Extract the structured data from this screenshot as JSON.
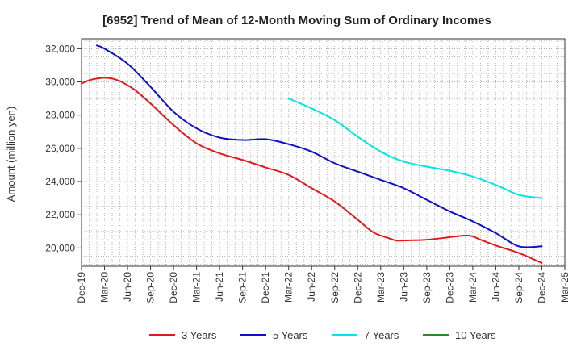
{
  "chart_data": {
    "type": "line",
    "title": "[6952]  Trend of Mean of 12-Month Moving Sum of Ordinary Incomes",
    "xlabel": "",
    "ylabel": "Amount (million yen)",
    "ylim": [
      18900,
      32600
    ],
    "yticks": [
      20000,
      22000,
      24000,
      26000,
      28000,
      30000,
      32000
    ],
    "ytick_labels": [
      "20,000",
      "22,000",
      "24,000",
      "26,000",
      "28,000",
      "30,000",
      "32,000"
    ],
    "xticks": [
      0,
      3,
      6,
      9,
      12,
      15,
      18,
      21,
      24,
      27,
      30,
      33,
      36,
      39,
      42,
      45,
      48,
      51,
      54,
      57,
      60,
      63
    ],
    "xtick_labels": [
      "Dec-19",
      "Mar-20",
      "Jun-20",
      "Sep-20",
      "Dec-20",
      "Mar-21",
      "Jun-21",
      "Sep-21",
      "Dec-21",
      "Mar-22",
      "Jun-22",
      "Sep-22",
      "Dec-22",
      "Mar-23",
      "Jun-23",
      "Sep-23",
      "Dec-23",
      "Mar-24",
      "Jun-24",
      "Sep-24",
      "Dec-24",
      "Mar-25"
    ],
    "xlim": [
      0,
      63
    ],
    "grid": true,
    "legend_position": "bottom",
    "series": [
      {
        "name": "3 Years",
        "color": "#e31a1c",
        "x": [
          0,
          1,
          2,
          3,
          4,
          5,
          6,
          7,
          9,
          12,
          15,
          18,
          21,
          24,
          27,
          30,
          33,
          36,
          38,
          40,
          41,
          42,
          45,
          48,
          50,
          51,
          52,
          54,
          57,
          59,
          60
        ],
        "y": [
          29900,
          30100,
          30200,
          30250,
          30200,
          30050,
          29800,
          29500,
          28700,
          27400,
          26300,
          25700,
          25300,
          24850,
          24400,
          23600,
          22800,
          21700,
          20950,
          20600,
          20450,
          20450,
          20500,
          20650,
          20750,
          20700,
          20500,
          20150,
          19700,
          19300,
          19100
        ]
      },
      {
        "name": "5 Years",
        "color": "#1010c8",
        "x": [
          2,
          3,
          6,
          9,
          12,
          15,
          18,
          21,
          24,
          27,
          30,
          33,
          36,
          39,
          42,
          45,
          48,
          51,
          54,
          57,
          60
        ],
        "y": [
          32200,
          32000,
          31100,
          29700,
          28200,
          27200,
          26650,
          26500,
          26550,
          26250,
          25800,
          25100,
          24600,
          24100,
          23600,
          22900,
          22200,
          21600,
          20900,
          20100,
          20100
        ]
      },
      {
        "name": "7 Years",
        "color": "#00e5e5",
        "x": [
          27,
          30,
          33,
          36,
          39,
          42,
          45,
          48,
          51,
          54,
          57,
          60
        ],
        "y": [
          29000,
          28400,
          27700,
          26700,
          25800,
          25200,
          24900,
          24650,
          24300,
          23800,
          23200,
          23000
        ]
      },
      {
        "name": "10 Years",
        "color": "#2a8a2a",
        "x": [],
        "y": []
      }
    ]
  }
}
